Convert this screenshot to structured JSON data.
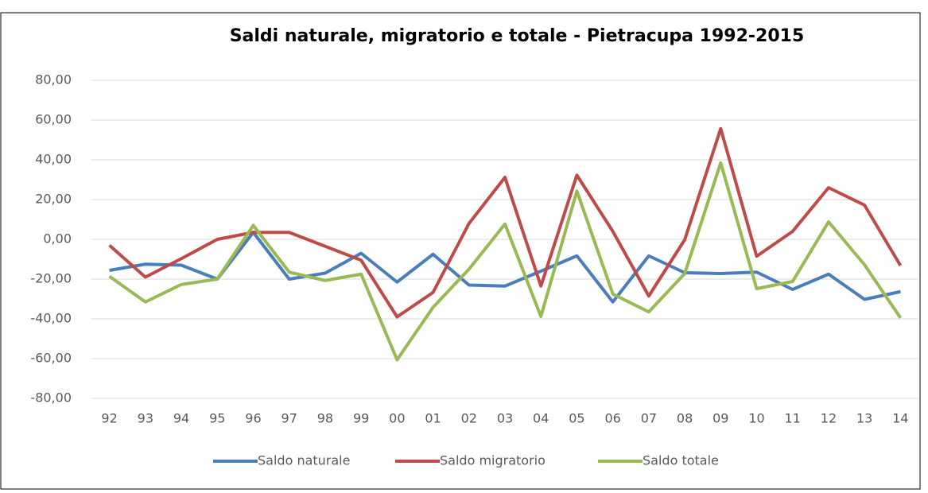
{
  "chart_data": {
    "type": "line",
    "title": "Saldi naturale, migratorio e totale - Pietracupa 1992-2015",
    "categories": [
      "92",
      "93",
      "94",
      "95",
      "96",
      "97",
      "98",
      "99",
      "00",
      "01",
      "02",
      "03",
      "04",
      "05",
      "06",
      "07",
      "08",
      "09",
      "10",
      "11",
      "12",
      "13",
      "14"
    ],
    "series": [
      {
        "name": "Saldo naturale",
        "color": "#4a7ebb",
        "values": [
          -15.6,
          -12.5,
          -13,
          -20,
          3.5,
          -20,
          -17,
          -7,
          -21.5,
          -7.5,
          -23,
          -23.5,
          -16,
          -8.3,
          -31.5,
          -8.3,
          -16.8,
          -17.2,
          -16.5,
          -25.2,
          -17.5,
          -30.2,
          -26.3
        ]
      },
      {
        "name": "Saldo migratorio",
        "color": "#be4b48",
        "values": [
          -3,
          -19,
          -9.7,
          0,
          3.5,
          3.5,
          -3.5,
          -10.5,
          -39,
          -26.7,
          8,
          31.2,
          -23.5,
          32.3,
          4,
          -28.5,
          -0.2,
          55.7,
          -8.5,
          4,
          26,
          17.2,
          -13.2
        ]
      },
      {
        "name": "Saldo totale",
        "color": "#98b954",
        "values": [
          -18.6,
          -31.5,
          -22.7,
          -20,
          7,
          -16.5,
          -20.7,
          -17.5,
          -60.6,
          -34.2,
          -15,
          7.7,
          -38.8,
          24.3,
          -27.5,
          -36.5,
          -17.2,
          38.5,
          -24.8,
          -21.2,
          8.8,
          -12.8,
          -39.5
        ]
      }
    ],
    "ylim": [
      -80,
      80
    ],
    "yticks": [
      {
        "value": -80,
        "label": "-80,00"
      },
      {
        "value": -60,
        "label": "-60,00"
      },
      {
        "value": -40,
        "label": "-40,00"
      },
      {
        "value": -20,
        "label": "-20,00"
      },
      {
        "value": 0,
        "label": "0,00"
      },
      {
        "value": 20,
        "label": "20,00"
      },
      {
        "value": 40,
        "label": "40,00"
      },
      {
        "value": 60,
        "label": "60,00"
      },
      {
        "value": 80,
        "label": "80,00"
      }
    ],
    "grid": true,
    "legend": "bottom"
  }
}
